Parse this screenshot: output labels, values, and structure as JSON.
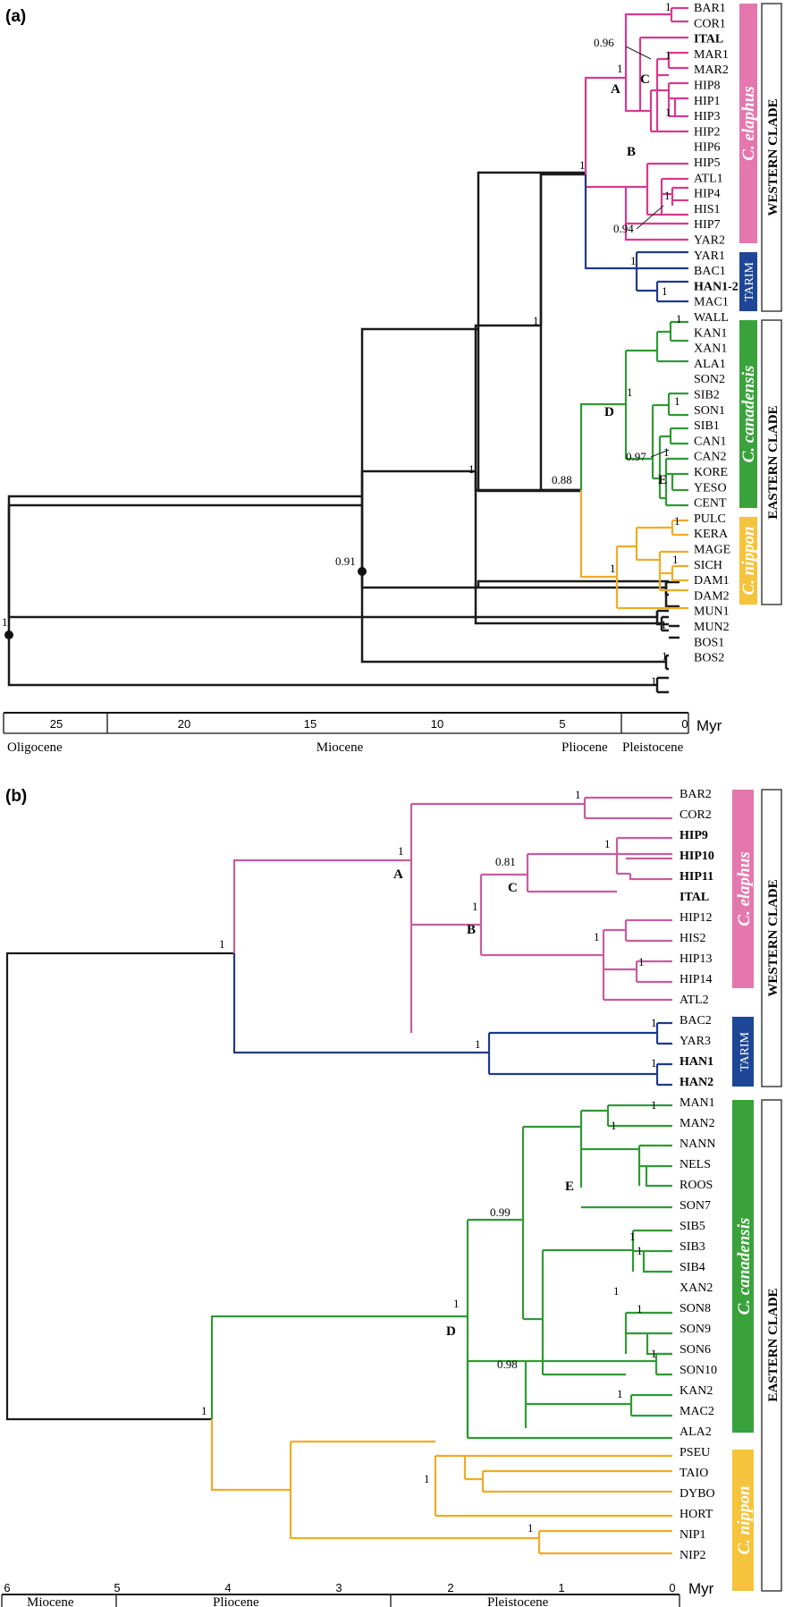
{
  "panels": [
    {
      "label": "(a)",
      "taxa_a": [
        [
          "BAR1",
          0
        ],
        [
          "COR1",
          0
        ],
        [
          "ITAL",
          1
        ],
        [
          "MAR1",
          0
        ],
        [
          "MAR2",
          0
        ],
        [
          "HIP8",
          0
        ],
        [
          "HIP1",
          0
        ],
        [
          "HIP3",
          0
        ],
        [
          "HIP2",
          0
        ],
        [
          "HIP6",
          0
        ],
        [
          "HIP5",
          0
        ],
        [
          "ATL1",
          0
        ],
        [
          "HIP4",
          0
        ],
        [
          "HIS1",
          0
        ],
        [
          "HIP7",
          0
        ],
        [
          "YAR2",
          0
        ],
        [
          "YAR1",
          0
        ],
        [
          "BAC1",
          0
        ],
        [
          "HAN1-2",
          1
        ],
        [
          "MAC1",
          0
        ],
        [
          "WALL",
          0
        ],
        [
          "KAN1",
          0
        ],
        [
          "XAN1",
          0
        ],
        [
          "ALA1",
          0
        ],
        [
          "SON2",
          0
        ],
        [
          "SIB2",
          0
        ],
        [
          "SON1",
          0
        ],
        [
          "SIB1",
          0
        ],
        [
          "CAN1",
          0
        ],
        [
          "CAN2",
          0
        ],
        [
          "KORE",
          0
        ],
        [
          "YESO",
          0
        ],
        [
          "CENT",
          0
        ],
        [
          "PULC",
          0
        ],
        [
          "KERA",
          0
        ],
        [
          "MAGE",
          0
        ],
        [
          "SICH",
          0
        ],
        [
          "DAM1",
          0
        ],
        [
          "DAM2",
          0
        ],
        [
          "MUN1",
          0
        ],
        [
          "MUN2",
          0
        ],
        [
          "BOS1",
          0
        ],
        [
          "BOS2",
          0
        ]
      ],
      "support": [
        "1",
        "1",
        "1",
        "1",
        "1",
        "1",
        "1",
        "1",
        "1",
        "1",
        "1",
        "1",
        "1",
        "1",
        "1",
        "1",
        "1",
        "1",
        "1",
        "1",
        "1",
        "1",
        "1",
        "1",
        "1",
        "1",
        "1",
        "1",
        "1",
        "1",
        "0.96",
        "0.94",
        "0.88",
        "0.91",
        "0.97"
      ],
      "node_labels": [
        "A",
        "B",
        "C",
        "D",
        "E"
      ],
      "axis": {
        "ticks": [
          "25",
          "20",
          "15",
          "10",
          "5",
          "0"
        ],
        "unit": "Myr"
      },
      "epochs": [
        "Oligocene",
        "Miocene",
        "Pliocene",
        "Pleistocene"
      ],
      "groups": [
        {
          "name": "C. elaphus",
          "color": "#e477ad"
        },
        {
          "name": "TARIM",
          "color": "#1d4796"
        },
        {
          "name": "C. canadensis",
          "color": "#3aa23b"
        },
        {
          "name": "C. nippon",
          "color": "#f5c33c"
        }
      ],
      "clades": [
        "WESTERN CLADE",
        "EASTERN CLADE"
      ]
    },
    {
      "label": "(b)",
      "taxa_b": [
        [
          "BAR2",
          0
        ],
        [
          "COR2",
          0
        ],
        [
          "HIP9",
          1
        ],
        [
          "HIP10",
          1
        ],
        [
          "HIP11",
          1
        ],
        [
          "ITAL",
          1
        ],
        [
          "HIP12",
          0
        ],
        [
          "HIS2",
          0
        ],
        [
          "HIP13",
          0
        ],
        [
          "HIP14",
          0
        ],
        [
          "ATL2",
          0
        ],
        [
          "BAC2",
          0
        ],
        [
          "YAR3",
          0
        ],
        [
          "HAN1",
          1
        ],
        [
          "HAN2",
          1
        ],
        [
          "MAN1",
          0
        ],
        [
          "MAN2",
          0
        ],
        [
          "NANN",
          0
        ],
        [
          "NELS",
          0
        ],
        [
          "ROOS",
          0
        ],
        [
          "SON7",
          0
        ],
        [
          "SIB5",
          0
        ],
        [
          "SIB3",
          0
        ],
        [
          "SIB4",
          0
        ],
        [
          "XAN2",
          0
        ],
        [
          "SON8",
          0
        ],
        [
          "SON9",
          0
        ],
        [
          "SON6",
          0
        ],
        [
          "SON10",
          0
        ],
        [
          "KAN2",
          0
        ],
        [
          "MAC2",
          0
        ],
        [
          "ALA2",
          0
        ],
        [
          "PSEU",
          0
        ],
        [
          "TAIO",
          0
        ],
        [
          "DYBO",
          0
        ],
        [
          "HORT",
          0
        ],
        [
          "NIP1",
          0
        ],
        [
          "NIP2",
          0
        ]
      ],
      "support": [
        "1",
        "1",
        "1",
        "1",
        "1",
        "1",
        "1",
        "1",
        "1",
        "1",
        "1",
        "1",
        "1",
        "1",
        "1",
        "1",
        "1",
        "1",
        "1",
        "1",
        "1",
        "1",
        "0.81",
        "0.99",
        "0.98"
      ],
      "node_labels": [
        "A",
        "B",
        "C",
        "D",
        "E"
      ],
      "axis": {
        "ticks": [
          "6",
          "5",
          "4",
          "3",
          "2",
          "1",
          "0"
        ],
        "unit": "Myr"
      },
      "epochs": [
        "Miocene",
        "Pliocene",
        "Pleistocene"
      ],
      "groups": [
        {
          "name": "C. elaphus",
          "color": "#e477ad"
        },
        {
          "name": "TARIM",
          "color": "#1d4796"
        },
        {
          "name": "C. canadensis",
          "color": "#3aa23b"
        },
        {
          "name": "C. nippon",
          "color": "#f5c33c"
        }
      ],
      "clades": [
        "WESTERN CLADE",
        "EASTERN CLADE"
      ]
    }
  ]
}
